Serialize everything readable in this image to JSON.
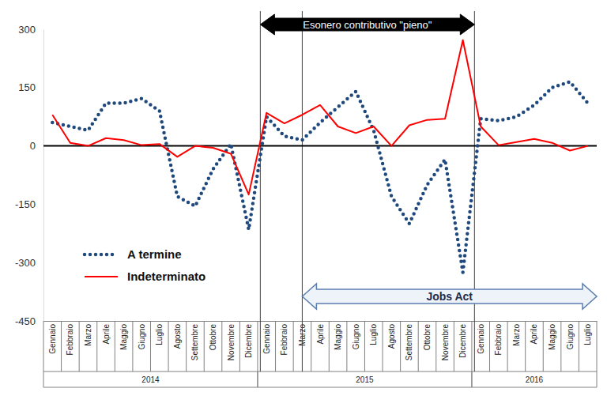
{
  "chart_data": {
    "type": "line",
    "categories": [
      "Gennaio",
      "Febbraio",
      "Marzo",
      "Aprile",
      "Maggio",
      "Giugno",
      "Luglio",
      "Agosto",
      "Settembre",
      "Ottobre",
      "Novembre",
      "Dicembre",
      "Gennaio",
      "Febbraio",
      "Marzo",
      "Aprile",
      "Maggio",
      "Giugno",
      "Luglio",
      "Agosto",
      "Settembre",
      "Ottobre",
      "Novembre",
      "Dicembre",
      "Gennaio",
      "Febbraio",
      "Marzo",
      "Aprile",
      "Maggio",
      "Giugno",
      "Luglio"
    ],
    "x_groups": [
      {
        "label": "2014",
        "from": 0,
        "to": 11
      },
      {
        "label": "2015",
        "from": 12,
        "to": 23
      },
      {
        "label": "2016",
        "from": 24,
        "to": 30
      }
    ],
    "series": [
      {
        "name": "A termine",
        "color": "#1f497d",
        "line_style": "dotted",
        "values": [
          60,
          50,
          40,
          110,
          110,
          122,
          90,
          -130,
          -155,
          -60,
          5,
          -215,
          75,
          25,
          15,
          60,
          100,
          140,
          40,
          -130,
          -200,
          -100,
          -35,
          -325,
          70,
          65,
          75,
          105,
          150,
          165,
          110
        ]
      },
      {
        "name": "Indeterminato",
        "color": "#ff0000",
        "line_style": "solid",
        "values": [
          80,
          8,
          0,
          20,
          15,
          2,
          5,
          -28,
          0,
          -5,
          -20,
          -125,
          85,
          58,
          80,
          105,
          50,
          33,
          50,
          0,
          53,
          67,
          70,
          272,
          50,
          2,
          10,
          18,
          8,
          -12,
          0
        ]
      }
    ],
    "ylim": [
      -450,
      300
    ],
    "yticks": [
      -450,
      -300,
      -150,
      0,
      150,
      300
    ],
    "grid": false,
    "legend": "lower left",
    "annotations": [
      {
        "type": "arrow",
        "text": "Esonero contributivo \"pieno\"",
        "from": 11.65,
        "to": 23.65,
        "color": "#000000"
      },
      {
        "type": "arrow",
        "text": "Jobs Act",
        "from": 14,
        "to": 30.5,
        "color": "#eef3fa"
      },
      {
        "type": "hline",
        "y": 0
      }
    ]
  }
}
